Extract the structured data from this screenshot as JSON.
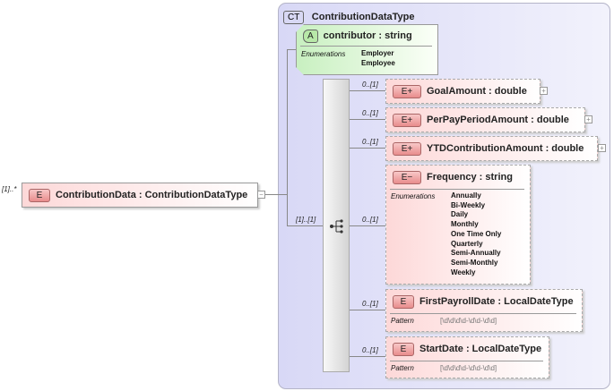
{
  "root": {
    "occurrence": "[1]..*",
    "badge": "E",
    "label": "ContributionData : ContributionDataType",
    "toggle": "−"
  },
  "complex_type": {
    "badge": "CT",
    "title": "ContributionDataType"
  },
  "attribute": {
    "badge": "A",
    "label": "contributor : string",
    "enum_label": "Enumerations",
    "enums": [
      "Employer",
      "Employee"
    ]
  },
  "sequence": {
    "occurrence": "[1]..[1]",
    "icon": "sequence-icon"
  },
  "children": [
    {
      "occurrence": "0..[1]",
      "badge": "E+",
      "label": "GoalAmount : double",
      "toggle": "+"
    },
    {
      "occurrence": "0..[1]",
      "badge": "E+",
      "label": "PerPayPeriodAmount : double",
      "toggle": "+"
    },
    {
      "occurrence": "0..[1]",
      "badge": "E+",
      "label": "YTDContributionAmount : double",
      "toggle": "+"
    },
    {
      "occurrence": "0..[1]",
      "badge": "E−",
      "label": "Frequency : string",
      "enum_label": "Enumerations",
      "enums": [
        "Annually",
        "Bi-Weekly",
        "Daily",
        "Monthly",
        "One Time Only",
        "Quarterly",
        "Semi-Annually",
        "Semi-Monthly",
        "Weekly"
      ]
    },
    {
      "occurrence": "0..[1]",
      "badge": "E",
      "label": "FirstPayrollDate : LocalDateType",
      "pattern_label": "Pattern",
      "pattern": "[\\d\\d\\d\\d-\\d\\d-\\d\\d]"
    },
    {
      "occurrence": "0..[1]",
      "badge": "E",
      "label": "StartDate : LocalDateType",
      "pattern_label": "Pattern",
      "pattern": "[\\d\\d\\d\\d-\\d\\d-\\d\\d]"
    }
  ]
}
